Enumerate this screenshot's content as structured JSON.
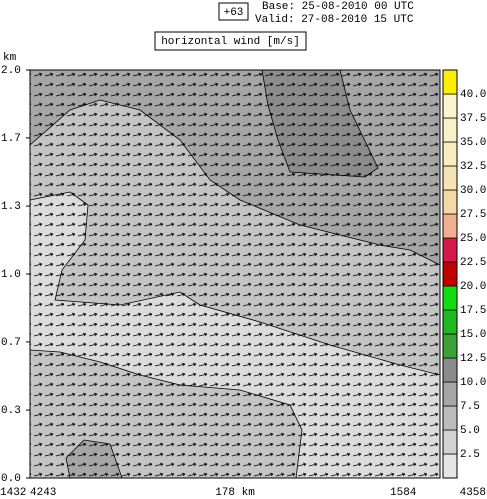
{
  "chart_data": {
    "type": "contour",
    "run_label": "+63",
    "base": "Base: 25-08-2010  00 UTC",
    "valid": "Valid: 27-08-2010  15 UTC",
    "title": "horizontal wind [m/s]",
    "y_label": "km",
    "ylim": [
      0,
      2
    ],
    "yticks": [
      {
        "value": 0,
        "label": "0.0"
      },
      {
        "value": 0.333,
        "label": "0.3"
      },
      {
        "value": 0.667,
        "label": "0.7"
      },
      {
        "value": 1,
        "label": "1.0"
      },
      {
        "value": 1.333,
        "label": "1.3"
      },
      {
        "value": 1.667,
        "label": "1.7"
      },
      {
        "value": 2,
        "label": "2.0"
      }
    ],
    "bottom_left": [
      1432,
      4243
    ],
    "bottom_center": "178 km",
    "bottom_right": [
      1584,
      4358
    ],
    "colorbar": {
      "clim": [
        0,
        42.5
      ],
      "ticks": [
        2.5,
        {
          "value": 5,
          "label": "5.0"
        },
        7.5,
        {
          "value": 10,
          "label": "10.0"
        },
        12.5,
        {
          "value": 15,
          "label": "15.0"
        },
        17.5,
        {
          "value": 20,
          "label": "20.0"
        },
        22.5,
        {
          "value": 25,
          "label": "25.0"
        },
        27.5,
        {
          "value": 30,
          "label": "30.0"
        },
        32.5,
        {
          "value": 35,
          "label": "35.0"
        },
        37.5,
        {
          "value": 40,
          "label": "40.0"
        }
      ],
      "colors": [
        "#e6e6e6",
        "#d2d2d2",
        "#bcbcbc",
        "#a6a6a6",
        "#8c8c8c",
        "#3aa03a",
        "#22b822",
        "#10dd10",
        "#c00000",
        "#d81848",
        "#f0b090",
        "#f4d8a8",
        "#f6e4b4",
        "#f8ecc0",
        "#faf0c8",
        "#fcf4d0",
        "#ffee00"
      ]
    }
  }
}
